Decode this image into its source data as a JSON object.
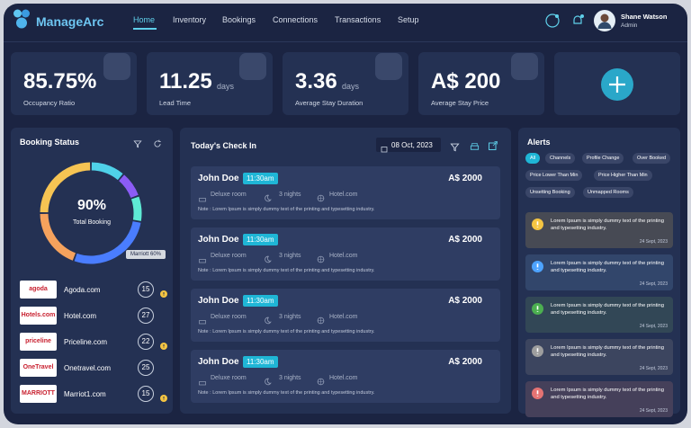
{
  "header": {
    "brand": "ManageArc",
    "nav": [
      "Home",
      "Inventory",
      "Bookings",
      "Connections",
      "Transactions",
      "Setup"
    ],
    "user": {
      "name": "Shane Watson",
      "role": "Admin"
    }
  },
  "stats": [
    {
      "value": "85.75%",
      "label": "Occupancy Ratio"
    },
    {
      "value": "11.25",
      "unit": "days",
      "label": "Lead Time"
    },
    {
      "value": "3.36",
      "unit": "days",
      "label": "Average Stay Duration"
    },
    {
      "value": "A$ 200",
      "label": "Average Stay Price"
    }
  ],
  "booking_status": {
    "title": "Booking Status",
    "center_value": "90%",
    "center_label": "Total Booking",
    "tooltip": "Marriott 60%",
    "channels": [
      {
        "logo": "agoda",
        "name": "Agoda.com",
        "count": 15,
        "alert": true
      },
      {
        "logo": "Hotels.com",
        "name": "Hotel.com",
        "count": 27,
        "alert": false
      },
      {
        "logo": "priceline",
        "name": "Priceline.com",
        "count": 22,
        "alert": true
      },
      {
        "logo": "OneTravel",
        "name": "Onetravel.com",
        "count": 25,
        "alert": false
      },
      {
        "logo": "MARRIOTT",
        "name": "Marriot1.com",
        "count": 15,
        "alert": true
      }
    ]
  },
  "check_in": {
    "title": "Today's Check In",
    "date": "08 Oct, 2023",
    "bookings": [
      {
        "guest": "John Doe",
        "time": "11:30am",
        "price": "A$ 2000",
        "room": "Deluxe room",
        "nights": "3 nights",
        "source": "Hotel.com",
        "note": "Note : Lorem Ipsum is simply dummy text of the printing and typesetting industry."
      },
      {
        "guest": "John Doe",
        "time": "11:30am",
        "price": "A$ 2000",
        "room": "Deluxe room",
        "nights": "3 nights",
        "source": "Hotel.com",
        "note": "Note : Lorem Ipsum is simply dummy text of the printing and typesetting industry."
      },
      {
        "guest": "John Doe",
        "time": "11:30am",
        "price": "A$ 2000",
        "room": "Deluxe room",
        "nights": "3 nights",
        "source": "Hotel.com",
        "note": "Note : Lorem Ipsum is simply dummy text of the printing and typesetting industry."
      },
      {
        "guest": "John Doe",
        "time": "11:30am",
        "price": "A$ 2000",
        "room": "Deluxe room",
        "nights": "3 nights",
        "source": "Hotel.com",
        "note": "Note : Lorem Ipsum is simply dummy text of the printing and typesetting industry."
      }
    ]
  },
  "alerts": {
    "title": "Alerts",
    "filters": [
      "All",
      "Channels",
      "Profile Change",
      "Over Booked",
      "Price Lower Than Min",
      "Price Higher Than Min",
      "Unsetting Booking",
      "Unmapped Rooms"
    ],
    "items": [
      {
        "text": "Lorem Ipsum is simply dummy text of the printing and typesetting industry.",
        "date": "24 Sept, 2023",
        "color": "#f5c542"
      },
      {
        "text": "Lorem Ipsum is simply dummy text of the printing and typesetting industry.",
        "date": "24 Sept, 2023",
        "color": "#4da3ff"
      },
      {
        "text": "Lorem Ipsum is simply dummy text of the printing and typesetting industry.",
        "date": "24 Sept, 2023",
        "color": "#4caf50"
      },
      {
        "text": "Lorem Ipsum is simply dummy text of the printing and typesetting industry.",
        "date": "24 Sept, 2023",
        "color": "#9e9e9e"
      },
      {
        "text": "Lorem Ipsum is simply dummy text of the printing and typesetting industry.",
        "date": "24 Sept, 2023",
        "color": "#e57373"
      }
    ]
  }
}
